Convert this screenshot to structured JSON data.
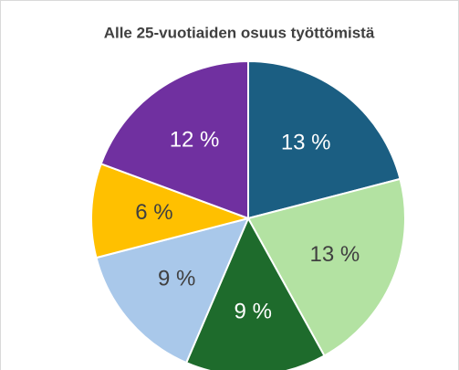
{
  "chart_data": {
    "type": "pie",
    "title": "Alle 25-vuotiaiden osuus työttömistä",
    "values": [
      13,
      13,
      9,
      9,
      6,
      12
    ],
    "value_labels": [
      "13 %",
      "13 %",
      "9 %",
      "9 %",
      "6 %",
      "12 %"
    ],
    "colors": [
      "#1b5e82",
      "#b3e2a2",
      "#1e6b2c",
      "#a9c8ea",
      "#ffc000",
      "#7030a0"
    ]
  }
}
